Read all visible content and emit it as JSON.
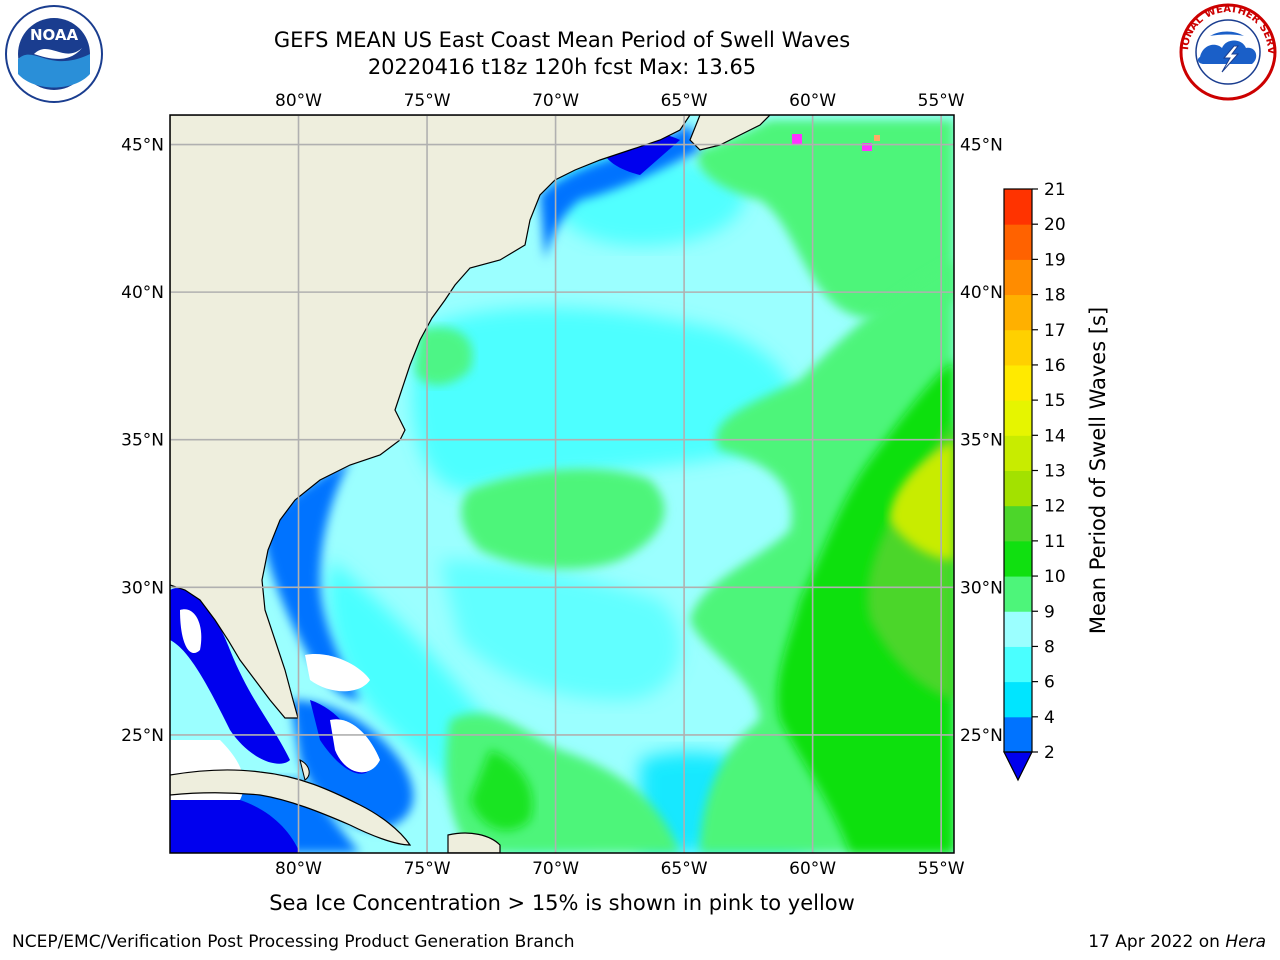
{
  "title": {
    "line1": "GEFS MEAN US East Coast Mean Period of Swell Waves",
    "line2": "20220416 t18z 120h fcst   Max: 13.65"
  },
  "map": {
    "lon_labels": [
      "80°W",
      "75°W",
      "70°W",
      "65°W",
      "60°W",
      "55°W"
    ],
    "lat_labels": [
      "45°N",
      "40°N",
      "35°N",
      "30°N",
      "25°N"
    ],
    "lon_values": [
      -80,
      -75,
      -70,
      -65,
      -60,
      -55
    ],
    "lat_values": [
      45,
      40,
      35,
      30,
      25
    ],
    "lon_range": [
      -85,
      -54.5
    ],
    "lat_range": [
      21,
      46
    ],
    "land_color": "#eeeedd",
    "grid_color": "#b0b0b0"
  },
  "colorbar": {
    "label": "Mean Period of Swell Waves [s]",
    "ticks": [
      "2",
      "4",
      "6",
      "8",
      "9",
      "10",
      "11",
      "12",
      "13",
      "14",
      "15",
      "16",
      "17",
      "18",
      "19",
      "20",
      "21"
    ],
    "colors": [
      "#0073ff",
      "#00e5ff",
      "#4affff",
      "#9bffff",
      "#4df57a",
      "#10e010",
      "#4cd62a",
      "#a3e100",
      "#c8ec00",
      "#e6f500",
      "#ffea00",
      "#ffd000",
      "#ffb000",
      "#ff8c00",
      "#ff6200",
      "#ff3300",
      "#ff0000"
    ],
    "under_color": "#0000ee"
  },
  "caption": "Sea Ice Concentration > 15% is shown in pink to yellow",
  "footer": {
    "left": "NCEP/EMC/Verification Post Processing Product Generation Branch",
    "right_date": "17 Apr 2022 on ",
    "right_machine": "Hera"
  },
  "logos": {
    "left": {
      "text": "NOAA",
      "ring": "NATIONAL OCEANIC AND ATMOSPHERIC ADMINISTRATION · U.S. DEPARTMENT OF COMMERCE"
    },
    "right": {
      "ring": "NATIONAL WEATHER SERVICE"
    }
  }
}
